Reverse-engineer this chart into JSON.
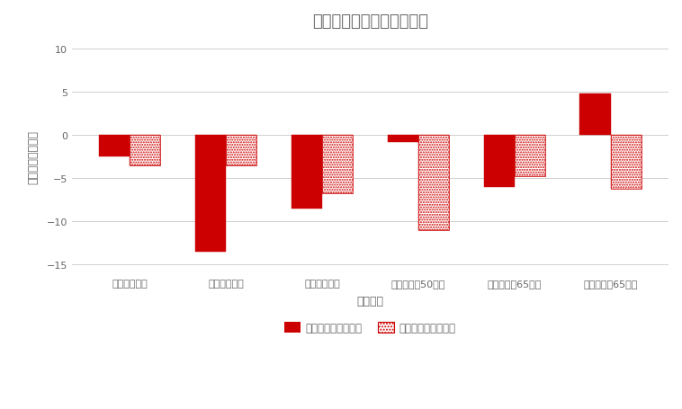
{
  "title": "生活扶助引き下げの可能性",
  "xlabel": "世帯類型",
  "ylabel": "引き下げ幅（％）",
  "categories": [
    "母親＋子１人",
    "夫婦＋子１人",
    "夫婦＋子２人",
    "若年単身（50代）",
    "高齢単身（65歳）",
    "高齢夫婦（65歳）"
  ],
  "series1_label": "実データによる検討",
  "series2_label": "回帰分析による検討",
  "series1_values": [
    -2.5,
    -13.5,
    -8.5,
    -0.8,
    -6.0,
    4.8
  ],
  "series2_values": [
    -3.5,
    -3.5,
    -6.7,
    -11.0,
    -4.7,
    -6.2
  ],
  "bar_color": "#cc0000",
  "ylim": [
    -16,
    11
  ],
  "yticks": [
    -15,
    -10,
    -5,
    0,
    5,
    10
  ],
  "background_color": "#ffffff",
  "grid_color": "#d0d0d0",
  "title_fontsize": 13,
  "axis_fontsize": 9,
  "tick_fontsize": 8,
  "legend_fontsize": 8.5,
  "bar_width": 0.32
}
